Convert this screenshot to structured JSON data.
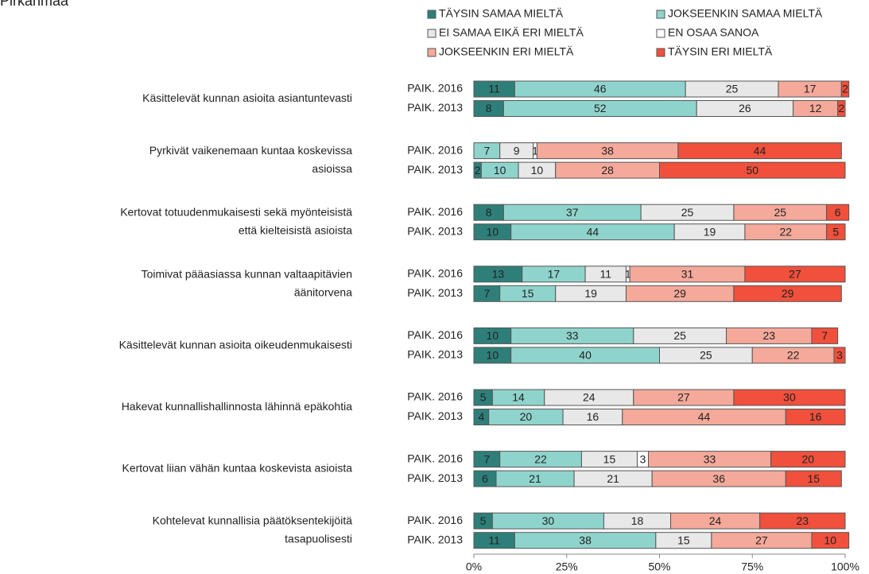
{
  "chart_data": {
    "type": "stacked_bar_horizontal",
    "title": "Pirkanmaa",
    "categories": [
      [
        "Käsittelevät kunnan asioita asiantuntevasti"
      ],
      [
        "Pyrkivät vaikenemaan kuntaa koskevissa",
        "asioissa"
      ],
      [
        "Kertovat totuudenmukaisesti sekä myönteisistä",
        "että kielteisistä asioista"
      ],
      [
        "Toimivat pääasiassa kunnan valtaapitävien",
        "äänitorvena"
      ],
      [
        "Käsittelevät kunnan asioita oikeudenmukaisesti"
      ],
      [
        "Hakevat kunnallishallinnosta lähinnä epäkohtia"
      ],
      [
        "Kertovat liian vähän kuntaa koskevista asioista"
      ],
      [
        "Kohtelevat kunnallisia päätöksentekijöitä",
        "tasapuolisesti"
      ]
    ],
    "groups": [
      "PAIK. 2016",
      "PAIK. 2013"
    ],
    "series": [
      {
        "name": "TÄYSIN SAMAA MIELTÄ",
        "color": "#2e7f7a",
        "label_color": "#ffffff",
        "values": [
          [
            11,
            8
          ],
          [
            null,
            2
          ],
          [
            8,
            10
          ],
          [
            13,
            7
          ],
          [
            10,
            10
          ],
          [
            5,
            4
          ],
          [
            7,
            6
          ],
          [
            5,
            11
          ]
        ]
      },
      {
        "name": "JOKSEENKIN SAMAA MIELTÄ",
        "color": "#8fd4cc",
        "label_color": "#1f6f6a",
        "values": [
          [
            46,
            52
          ],
          [
            7,
            10
          ],
          [
            37,
            44
          ],
          [
            17,
            15
          ],
          [
            33,
            40
          ],
          [
            14,
            20
          ],
          [
            22,
            21
          ],
          [
            30,
            38
          ]
        ]
      },
      {
        "name": "EI SAMAA EIKÄ ERI MIELTÄ",
        "color": "#e8e8e8",
        "label_color": "#808080",
        "values": [
          [
            25,
            26
          ],
          [
            9,
            10
          ],
          [
            25,
            19
          ],
          [
            11,
            19
          ],
          [
            25,
            25
          ],
          [
            24,
            16
          ],
          [
            15,
            21
          ],
          [
            18,
            15
          ]
        ]
      },
      {
        "name": "EN OSAA SANOA",
        "color": "#ffffff",
        "label_color": "#808080",
        "values": [
          [
            null,
            null
          ],
          [
            1,
            null
          ],
          [
            null,
            null
          ],
          [
            1,
            null
          ],
          [
            null,
            null
          ],
          [
            null,
            null
          ],
          [
            3,
            null
          ],
          [
            null,
            null
          ]
        ]
      },
      {
        "name": "JOKSEENKIN ERI MIELTÄ",
        "color": "#f4a99a",
        "label_color": "#c0392b",
        "values": [
          [
            17,
            12
          ],
          [
            38,
            28
          ],
          [
            25,
            22
          ],
          [
            31,
            29
          ],
          [
            23,
            22
          ],
          [
            27,
            44
          ],
          [
            33,
            36
          ],
          [
            24,
            27
          ]
        ]
      },
      {
        "name": "TÄYSIN ERI MIELTÄ",
        "color": "#f0503c",
        "label_color": "#ffffff",
        "values": [
          [
            2,
            2
          ],
          [
            44,
            50
          ],
          [
            6,
            5
          ],
          [
            27,
            29
          ],
          [
            7,
            3
          ],
          [
            30,
            16
          ],
          [
            20,
            15
          ],
          [
            23,
            10
          ]
        ]
      }
    ],
    "xlim": [
      0,
      100
    ],
    "xticks": [
      {
        "value": 0,
        "label": "0%"
      },
      {
        "value": 25,
        "label": "25%"
      },
      {
        "value": 50,
        "label": "50%"
      },
      {
        "value": 75,
        "label": "75%"
      },
      {
        "value": 100,
        "label": "100%"
      }
    ]
  }
}
